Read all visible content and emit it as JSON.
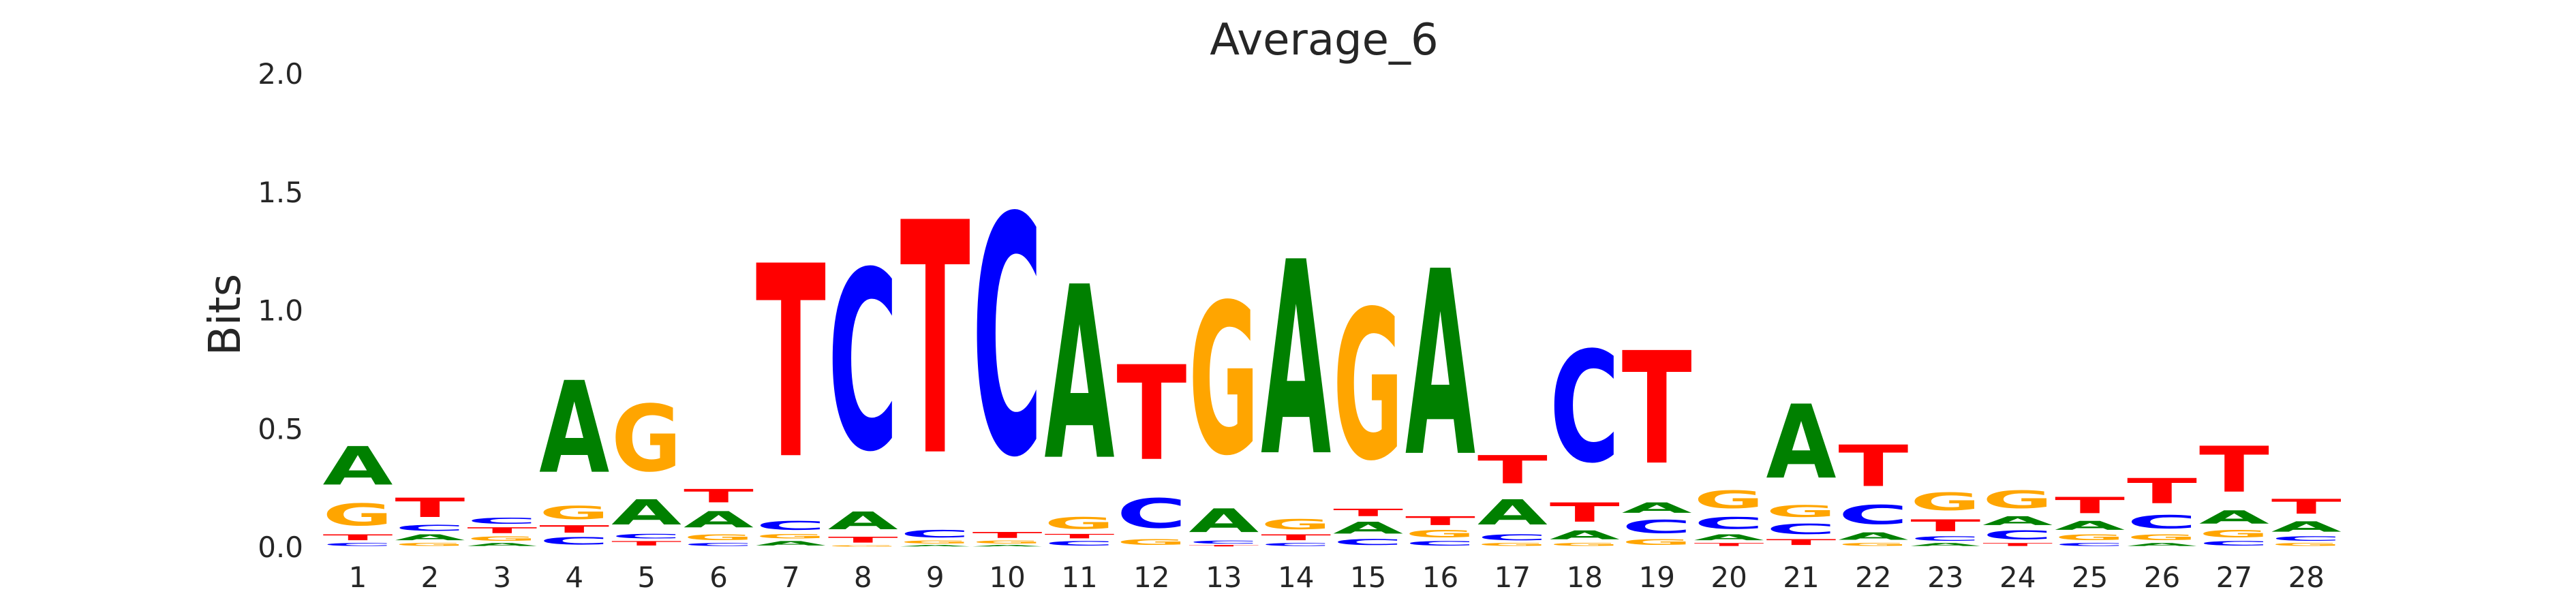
{
  "chart_data": {
    "type": "sequence-logo",
    "title": "Average_6",
    "ylabel": "Bits",
    "xlabel": "",
    "ylim": [
      0,
      2.0
    ],
    "yticks": [
      "0.0",
      "0.5",
      "1.0",
      "1.5",
      "2.0"
    ],
    "ytick_values": [
      0,
      0.5,
      1.0,
      1.5,
      2.0
    ],
    "grid": false,
    "colors": {
      "A": "#008000",
      "C": "#0000ff",
      "G": "#ffa500",
      "T": "#ff0000"
    },
    "positions": [
      {
        "x": "1",
        "stack": [
          [
            "C",
            0.02
          ],
          [
            "T",
            0.04
          ],
          [
            "G",
            0.15
          ],
          [
            "A",
            0.26
          ]
        ]
      },
      {
        "x": "2",
        "stack": [
          [
            "G",
            0.02
          ],
          [
            "A",
            0.04
          ],
          [
            "C",
            0.04
          ],
          [
            "T",
            0.13
          ]
        ]
      },
      {
        "x": "3",
        "stack": [
          [
            "A",
            0.02
          ],
          [
            "G",
            0.03
          ],
          [
            "T",
            0.04
          ],
          [
            "C",
            0.04
          ]
        ]
      },
      {
        "x": "4",
        "stack": [
          [
            "C",
            0.05
          ],
          [
            "T",
            0.05
          ],
          [
            "G",
            0.09
          ],
          [
            "A",
            0.62
          ]
        ]
      },
      {
        "x": "5",
        "stack": [
          [
            "T",
            0.03
          ],
          [
            "C",
            0.03
          ],
          [
            "A",
            0.17
          ],
          [
            "G",
            0.45
          ]
        ]
      },
      {
        "x": "6",
        "stack": [
          [
            "C",
            0.02
          ],
          [
            "G",
            0.04
          ],
          [
            "A",
            0.11
          ],
          [
            "T",
            0.09
          ]
        ]
      },
      {
        "x": "7",
        "stack": [
          [
            "A",
            0.03
          ],
          [
            "G",
            0.03
          ],
          [
            "C",
            0.06
          ],
          [
            "T",
            1.3
          ]
        ]
      },
      {
        "x": "8",
        "stack": [
          [
            "G",
            0.01
          ],
          [
            "T",
            0.04
          ],
          [
            "A",
            0.12
          ],
          [
            "C",
            1.21
          ]
        ]
      },
      {
        "x": "9",
        "stack": [
          [
            "A",
            0.01
          ],
          [
            "G",
            0.02
          ],
          [
            "C",
            0.05
          ],
          [
            "T",
            1.57
          ]
        ]
      },
      {
        "x": "10",
        "stack": [
          [
            "A",
            0.01
          ],
          [
            "G",
            0.02
          ],
          [
            "T",
            0.04
          ],
          [
            "C",
            1.61
          ]
        ]
      },
      {
        "x": "11",
        "stack": [
          [
            "C",
            0.03
          ],
          [
            "T",
            0.03
          ],
          [
            "G",
            0.08
          ],
          [
            "A",
            1.17
          ]
        ]
      },
      {
        "x": "12",
        "stack": [
          [
            "G",
            0.04
          ],
          [
            "C",
            0.2
          ],
          [
            "T",
            0.64
          ]
        ]
      },
      {
        "x": "13",
        "stack": [
          [
            "T",
            0.01
          ],
          [
            "C",
            0.02
          ],
          [
            "A",
            0.16
          ],
          [
            "G",
            1.02
          ]
        ]
      },
      {
        "x": "14",
        "stack": [
          [
            "C",
            0.02
          ],
          [
            "T",
            0.04
          ],
          [
            "G",
            0.07
          ],
          [
            "A",
            1.31
          ]
        ]
      },
      {
        "x": "15",
        "stack": [
          [
            "C",
            0.04
          ],
          [
            "A",
            0.08
          ],
          [
            "T",
            0.05
          ],
          [
            "G",
            1.01
          ]
        ]
      },
      {
        "x": "16",
        "stack": [
          [
            "C",
            0.03
          ],
          [
            "G",
            0.05
          ],
          [
            "T",
            0.06
          ],
          [
            "A",
            1.25
          ]
        ]
      },
      {
        "x": "17",
        "stack": [
          [
            "G",
            0.02
          ],
          [
            "C",
            0.04
          ],
          [
            "A",
            0.17
          ],
          [
            "T",
            0.19
          ]
        ]
      },
      {
        "x": "18",
        "stack": [
          [
            "G",
            0.02
          ],
          [
            "A",
            0.06
          ],
          [
            "T",
            0.13
          ],
          [
            "C",
            0.75
          ]
        ]
      },
      {
        "x": "19",
        "stack": [
          [
            "G",
            0.04
          ],
          [
            "C",
            0.09
          ],
          [
            "A",
            0.07
          ],
          [
            "T",
            0.76
          ]
        ]
      },
      {
        "x": "20",
        "stack": [
          [
            "T",
            0.02
          ],
          [
            "A",
            0.04
          ],
          [
            "C",
            0.08
          ],
          [
            "G",
            0.12
          ]
        ]
      },
      {
        "x": "21",
        "stack": [
          [
            "T",
            0.04
          ],
          [
            "C",
            0.07
          ],
          [
            "G",
            0.08
          ],
          [
            "A",
            0.5
          ]
        ]
      },
      {
        "x": "22",
        "stack": [
          [
            "G",
            0.02
          ],
          [
            "A",
            0.05
          ],
          [
            "C",
            0.13
          ],
          [
            "T",
            0.28
          ]
        ]
      },
      {
        "x": "23",
        "stack": [
          [
            "A",
            0.02
          ],
          [
            "C",
            0.03
          ],
          [
            "T",
            0.08
          ],
          [
            "G",
            0.12
          ]
        ]
      },
      {
        "x": "24",
        "stack": [
          [
            "T",
            0.02
          ],
          [
            "C",
            0.06
          ],
          [
            "A",
            0.06
          ],
          [
            "G",
            0.12
          ]
        ]
      },
      {
        "x": "25",
        "stack": [
          [
            "C",
            0.02
          ],
          [
            "G",
            0.04
          ],
          [
            "A",
            0.06
          ],
          [
            "T",
            0.11
          ]
        ]
      },
      {
        "x": "26",
        "stack": [
          [
            "A",
            0.02
          ],
          [
            "G",
            0.04
          ],
          [
            "C",
            0.09
          ],
          [
            "T",
            0.17
          ]
        ]
      },
      {
        "x": "27",
        "stack": [
          [
            "C",
            0.03
          ],
          [
            "G",
            0.05
          ],
          [
            "A",
            0.09
          ],
          [
            "T",
            0.31
          ]
        ]
      },
      {
        "x": "28",
        "stack": [
          [
            "G",
            0.02
          ],
          [
            "C",
            0.03
          ],
          [
            "A",
            0.07
          ],
          [
            "T",
            0.1
          ]
        ]
      }
    ]
  }
}
